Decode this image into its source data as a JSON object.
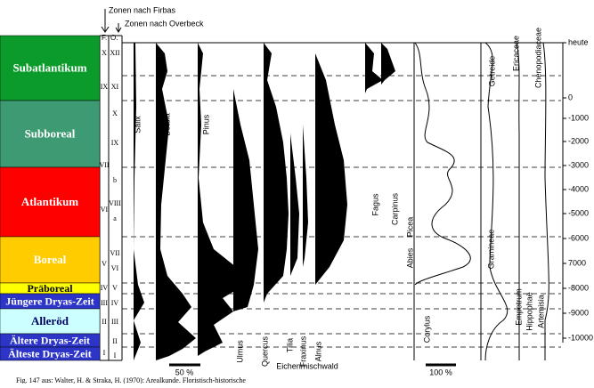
{
  "annotations": {
    "firbas": "Zonen nach Firbas",
    "overbeck": "Zonen nach Overbeck",
    "f": "F.",
    "o": "O."
  },
  "periods": [
    "Subatlantikum",
    "Subboreal",
    "Atlantikum",
    "Boreal",
    "Präboreal",
    "Jüngere Dryas-Zeit",
    "Alleröd",
    "Ältere Dryas-Zeit",
    "Älteste Dryas-Zeit"
  ],
  "zones_firbas": [
    "X",
    "IX",
    "VII",
    "VI",
    "V",
    "IV",
    "III",
    "II",
    "I"
  ],
  "zones_overbeck": [
    "XII",
    "XI",
    "X",
    "IX",
    "b",
    "VIII",
    "a",
    "VII",
    "VI",
    "V",
    "IV",
    "III",
    "II",
    "I"
  ],
  "taxa": [
    "Salix",
    "Betula",
    "Pinus",
    "Ulmus",
    "Quercus",
    "Tilia",
    "Fraxinus",
    "Alnus",
    "Eichenmischwald",
    "Fagus",
    "Carpinus",
    "Picea",
    "Abies",
    "Corylus",
    "Gramineae",
    "Getreide",
    "Ericaceae",
    "Chenopodiaceae",
    "Empetrum",
    "Hippophaë",
    "Artemisia"
  ],
  "time_axis": [
    "heute",
    "0",
    "-1000",
    "-2000",
    "-3000",
    "-4000",
    "-5000",
    "-6000",
    "7000",
    "-8000",
    "-9000",
    "-10000"
  ],
  "scale_labels": [
    "50 %",
    "100 %"
  ],
  "caption": "Fig. 147 aus: Walter, H. & Straka, H. (1970): Arealkunde. Floristisch-historische"
}
